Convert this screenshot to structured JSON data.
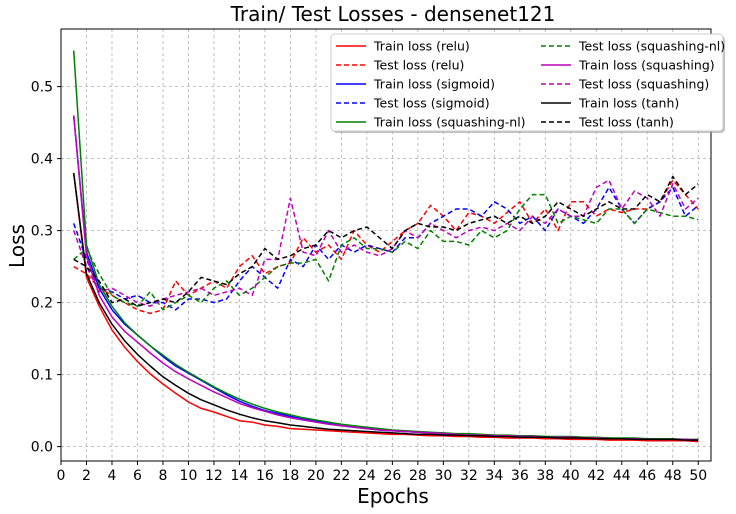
{
  "chart_data": {
    "type": "line",
    "title": "Train/ Test Losses - densenet121",
    "xlabel": "Epochs",
    "ylabel": "Loss",
    "xlim": [
      0,
      51
    ],
    "ylim": [
      -0.02,
      0.58
    ],
    "xticks": [
      0,
      2,
      4,
      6,
      8,
      10,
      12,
      14,
      16,
      18,
      20,
      22,
      24,
      26,
      28,
      30,
      32,
      34,
      36,
      38,
      40,
      42,
      44,
      46,
      48,
      50
    ],
    "yticks": [
      0.0,
      0.1,
      0.2,
      0.3,
      0.4,
      0.5
    ],
    "grid": true,
    "legend_position": "top-right",
    "x": [
      1,
      2,
      3,
      4,
      5,
      6,
      7,
      8,
      9,
      10,
      11,
      12,
      13,
      14,
      15,
      16,
      17,
      18,
      19,
      20,
      21,
      22,
      23,
      24,
      25,
      26,
      27,
      28,
      29,
      30,
      31,
      32,
      33,
      34,
      35,
      36,
      37,
      38,
      39,
      40,
      41,
      42,
      43,
      44,
      45,
      46,
      47,
      48,
      49,
      50
    ],
    "series": [
      {
        "name": "Train loss (relu)",
        "color": "#ff0000",
        "dash": "solid",
        "values": [
          0.38,
          0.235,
          0.195,
          0.162,
          0.138,
          0.118,
          0.101,
          0.087,
          0.074,
          0.062,
          0.053,
          0.048,
          0.042,
          0.036,
          0.034,
          0.03,
          0.028,
          0.025,
          0.024,
          0.023,
          0.022,
          0.021,
          0.02,
          0.019,
          0.018,
          0.017,
          0.017,
          0.016,
          0.015,
          0.015,
          0.014,
          0.014,
          0.013,
          0.013,
          0.012,
          0.012,
          0.012,
          0.011,
          0.011,
          0.01,
          0.01,
          0.01,
          0.009,
          0.009,
          0.009,
          0.008,
          0.008,
          0.008,
          0.008,
          0.007
        ]
      },
      {
        "name": "Test loss (relu)",
        "color": "#ff0000",
        "dash": "dashed",
        "values": [
          0.25,
          0.24,
          0.22,
          0.21,
          0.2,
          0.19,
          0.185,
          0.19,
          0.23,
          0.21,
          0.22,
          0.23,
          0.22,
          0.25,
          0.265,
          0.24,
          0.25,
          0.255,
          0.29,
          0.27,
          0.28,
          0.26,
          0.3,
          0.28,
          0.27,
          0.285,
          0.3,
          0.31,
          0.335,
          0.32,
          0.3,
          0.325,
          0.32,
          0.31,
          0.325,
          0.34,
          0.31,
          0.33,
          0.3,
          0.34,
          0.34,
          0.32,
          0.33,
          0.325,
          0.33,
          0.33,
          0.34,
          0.37,
          0.35,
          0.33
        ]
      },
      {
        "name": "Train loss (sigmoid)",
        "color": "#0000ff",
        "dash": "solid",
        "values": [
          0.46,
          0.27,
          0.22,
          0.19,
          0.17,
          0.155,
          0.14,
          0.125,
          0.112,
          0.102,
          0.092,
          0.082,
          0.072,
          0.063,
          0.056,
          0.05,
          0.046,
          0.042,
          0.038,
          0.035,
          0.032,
          0.029,
          0.027,
          0.025,
          0.023,
          0.022,
          0.021,
          0.02,
          0.019,
          0.018,
          0.017,
          0.017,
          0.016,
          0.016,
          0.015,
          0.015,
          0.014,
          0.014,
          0.013,
          0.013,
          0.013,
          0.012,
          0.012,
          0.011,
          0.011,
          0.011,
          0.01,
          0.01,
          0.01,
          0.009
        ]
      },
      {
        "name": "Test loss (sigmoid)",
        "color": "#0000ff",
        "dash": "dashed",
        "values": [
          0.31,
          0.26,
          0.22,
          0.215,
          0.205,
          0.21,
          0.2,
          0.2,
          0.19,
          0.205,
          0.205,
          0.2,
          0.205,
          0.23,
          0.25,
          0.235,
          0.22,
          0.26,
          0.25,
          0.28,
          0.26,
          0.28,
          0.27,
          0.28,
          0.275,
          0.27,
          0.29,
          0.29,
          0.31,
          0.32,
          0.33,
          0.33,
          0.32,
          0.34,
          0.33,
          0.31,
          0.32,
          0.3,
          0.33,
          0.32,
          0.31,
          0.33,
          0.36,
          0.33,
          0.31,
          0.33,
          0.34,
          0.36,
          0.32,
          0.335
        ]
      },
      {
        "name": "Train loss (squashing-nl)",
        "color": "#008000",
        "dash": "solid",
        "values": [
          0.55,
          0.28,
          0.225,
          0.195,
          0.172,
          0.155,
          0.14,
          0.127,
          0.114,
          0.103,
          0.093,
          0.083,
          0.074,
          0.066,
          0.059,
          0.053,
          0.048,
          0.044,
          0.04,
          0.037,
          0.034,
          0.031,
          0.029,
          0.027,
          0.025,
          0.023,
          0.022,
          0.021,
          0.02,
          0.019,
          0.018,
          0.018,
          0.017,
          0.016,
          0.016,
          0.015,
          0.015,
          0.014,
          0.014,
          0.014,
          0.013,
          0.013,
          0.012,
          0.012,
          0.012,
          0.011,
          0.011,
          0.011,
          0.01,
          0.01
        ]
      },
      {
        "name": "Test loss (squashing-nl)",
        "color": "#008000",
        "dash": "dashed",
        "values": [
          0.26,
          0.275,
          0.24,
          0.21,
          0.2,
          0.195,
          0.215,
          0.19,
          0.2,
          0.21,
          0.2,
          0.22,
          0.23,
          0.21,
          0.22,
          0.235,
          0.25,
          0.255,
          0.255,
          0.26,
          0.23,
          0.28,
          0.29,
          0.275,
          0.275,
          0.27,
          0.285,
          0.275,
          0.3,
          0.285,
          0.285,
          0.28,
          0.3,
          0.29,
          0.3,
          0.33,
          0.35,
          0.35,
          0.31,
          0.32,
          0.315,
          0.31,
          0.33,
          0.33,
          0.31,
          0.33,
          0.325,
          0.32,
          0.32,
          0.315
        ]
      },
      {
        "name": "Train loss (squashing)",
        "color": "#bf00bf",
        "dash": "solid",
        "values": [
          0.46,
          0.265,
          0.21,
          0.18,
          0.16,
          0.145,
          0.13,
          0.116,
          0.104,
          0.094,
          0.085,
          0.076,
          0.068,
          0.06,
          0.054,
          0.049,
          0.044,
          0.04,
          0.037,
          0.034,
          0.031,
          0.029,
          0.027,
          0.025,
          0.023,
          0.022,
          0.021,
          0.02,
          0.019,
          0.018,
          0.017,
          0.016,
          0.016,
          0.015,
          0.015,
          0.014,
          0.014,
          0.013,
          0.013,
          0.013,
          0.012,
          0.012,
          0.011,
          0.011,
          0.011,
          0.01,
          0.01,
          0.01,
          0.01,
          0.009
        ]
      },
      {
        "name": "Test loss (squashing)",
        "color": "#bf00bf",
        "dash": "dashed",
        "values": [
          0.3,
          0.25,
          0.215,
          0.22,
          0.21,
          0.2,
          0.195,
          0.205,
          0.21,
          0.215,
          0.22,
          0.21,
          0.215,
          0.22,
          0.21,
          0.26,
          0.26,
          0.345,
          0.27,
          0.265,
          0.3,
          0.27,
          0.28,
          0.27,
          0.265,
          0.275,
          0.3,
          0.29,
          0.31,
          0.3,
          0.29,
          0.3,
          0.305,
          0.3,
          0.31,
          0.3,
          0.32,
          0.31,
          0.33,
          0.32,
          0.32,
          0.36,
          0.37,
          0.33,
          0.355,
          0.345,
          0.32,
          0.365,
          0.33,
          0.345
        ]
      },
      {
        "name": "Train loss (tanh)",
        "color": "#000000",
        "dash": "solid",
        "values": [
          0.38,
          0.24,
          0.2,
          0.17,
          0.147,
          0.128,
          0.112,
          0.097,
          0.085,
          0.074,
          0.065,
          0.058,
          0.051,
          0.045,
          0.04,
          0.036,
          0.033,
          0.03,
          0.028,
          0.026,
          0.024,
          0.023,
          0.022,
          0.021,
          0.02,
          0.019,
          0.018,
          0.017,
          0.017,
          0.016,
          0.016,
          0.015,
          0.015,
          0.014,
          0.014,
          0.013,
          0.013,
          0.013,
          0.012,
          0.012,
          0.012,
          0.011,
          0.011,
          0.011,
          0.01,
          0.01,
          0.01,
          0.01,
          0.009,
          0.009
        ]
      },
      {
        "name": "Test loss (tanh)",
        "color": "#000000",
        "dash": "dashed",
        "values": [
          0.26,
          0.25,
          0.23,
          0.2,
          0.205,
          0.195,
          0.2,
          0.205,
          0.2,
          0.215,
          0.235,
          0.23,
          0.225,
          0.24,
          0.25,
          0.275,
          0.26,
          0.265,
          0.275,
          0.28,
          0.3,
          0.29,
          0.3,
          0.305,
          0.29,
          0.275,
          0.3,
          0.31,
          0.305,
          0.305,
          0.3,
          0.31,
          0.315,
          0.32,
          0.31,
          0.32,
          0.31,
          0.32,
          0.34,
          0.33,
          0.32,
          0.33,
          0.34,
          0.33,
          0.33,
          0.35,
          0.34,
          0.375,
          0.35,
          0.365
        ]
      }
    ]
  }
}
